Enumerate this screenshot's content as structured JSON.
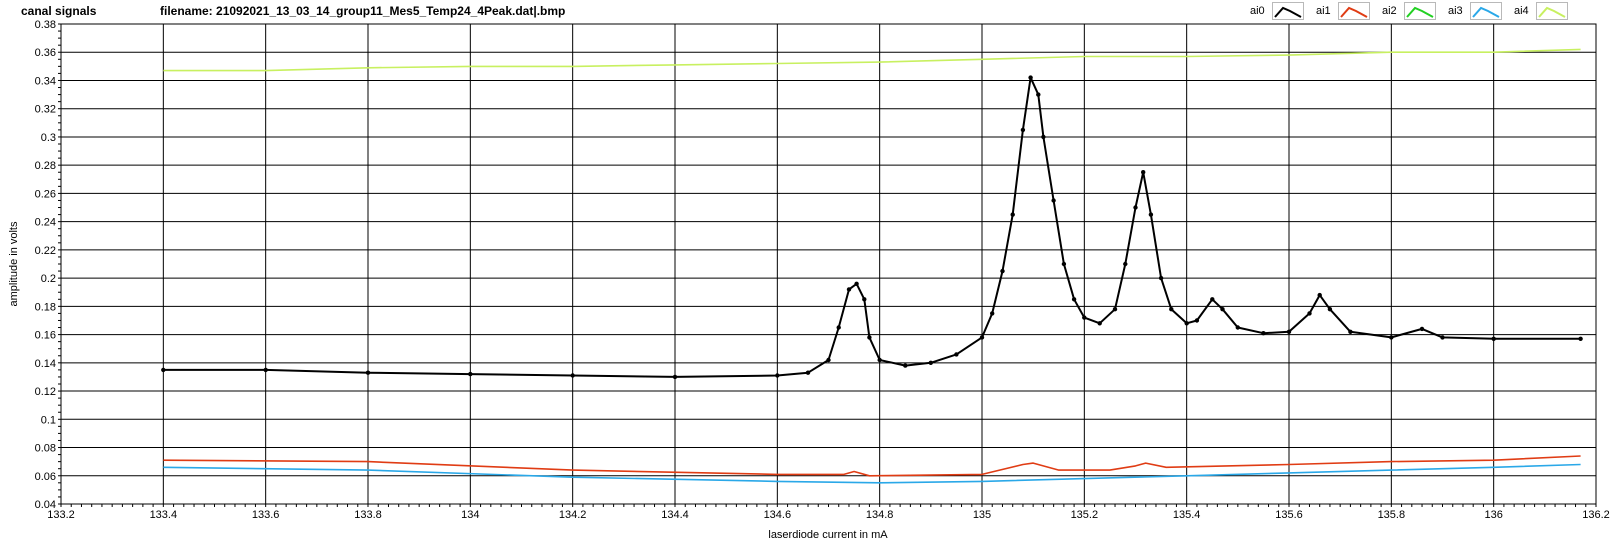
{
  "header": {
    "title": "canal signals",
    "filename": "filename: 21092021_13_03_14_group11_Mes5_Temp24_4Peak.dat|.bmp"
  },
  "legend": [
    {
      "label": "ai0",
      "color": "#000000",
      "icon": "zigzag-swatch"
    },
    {
      "label": "ai1",
      "color": "#e03c14",
      "icon": "zigzag-swatch"
    },
    {
      "label": "ai2",
      "color": "#22d022",
      "icon": "zigzag-swatch"
    },
    {
      "label": "ai3",
      "color": "#2aa8e8",
      "icon": "zigzag-swatch"
    },
    {
      "label": "ai4",
      "color": "#c8f060",
      "icon": "zigzag-swatch"
    }
  ],
  "chart_data": {
    "type": "line",
    "xlabel": "laserdiode current in mA",
    "ylabel": "amplitude in volts",
    "xlim": [
      133.2,
      136.2
    ],
    "ylim": [
      0.04,
      0.38
    ],
    "xticks": [
      "133.2",
      "133.4",
      "133.6",
      "133.8",
      "134",
      "134.2",
      "134.4",
      "134.6",
      "134.8",
      "135",
      "135.2",
      "135.4",
      "135.6",
      "135.8",
      "136",
      "136.2"
    ],
    "yticks": [
      "0.04",
      "0.06",
      "0.08",
      "0.1",
      "0.12",
      "0.14",
      "0.16",
      "0.18",
      "0.2",
      "0.22",
      "0.24",
      "0.26",
      "0.28",
      "0.3",
      "0.32",
      "0.34",
      "0.36",
      "0.38"
    ],
    "grid": true,
    "series": [
      {
        "name": "ai0",
        "color": "#000000",
        "markers": true,
        "points": [
          [
            133.4,
            0.135
          ],
          [
            133.6,
            0.135
          ],
          [
            133.8,
            0.133
          ],
          [
            134.0,
            0.132
          ],
          [
            134.2,
            0.131
          ],
          [
            134.4,
            0.13
          ],
          [
            134.6,
            0.131
          ],
          [
            134.66,
            0.133
          ],
          [
            134.7,
            0.142
          ],
          [
            134.72,
            0.165
          ],
          [
            134.74,
            0.192
          ],
          [
            134.755,
            0.196
          ],
          [
            134.77,
            0.185
          ],
          [
            134.78,
            0.158
          ],
          [
            134.8,
            0.142
          ],
          [
            134.85,
            0.138
          ],
          [
            134.9,
            0.14
          ],
          [
            134.95,
            0.146
          ],
          [
            135.0,
            0.158
          ],
          [
            135.02,
            0.175
          ],
          [
            135.04,
            0.205
          ],
          [
            135.06,
            0.245
          ],
          [
            135.08,
            0.305
          ],
          [
            135.095,
            0.342
          ],
          [
            135.11,
            0.33
          ],
          [
            135.12,
            0.3
          ],
          [
            135.14,
            0.255
          ],
          [
            135.16,
            0.21
          ],
          [
            135.18,
            0.185
          ],
          [
            135.2,
            0.172
          ],
          [
            135.23,
            0.168
          ],
          [
            135.26,
            0.178
          ],
          [
            135.28,
            0.21
          ],
          [
            135.3,
            0.25
          ],
          [
            135.315,
            0.275
          ],
          [
            135.33,
            0.245
          ],
          [
            135.35,
            0.2
          ],
          [
            135.37,
            0.178
          ],
          [
            135.4,
            0.168
          ],
          [
            135.42,
            0.17
          ],
          [
            135.45,
            0.185
          ],
          [
            135.47,
            0.178
          ],
          [
            135.5,
            0.165
          ],
          [
            135.55,
            0.161
          ],
          [
            135.6,
            0.162
          ],
          [
            135.64,
            0.175
          ],
          [
            135.66,
            0.188
          ],
          [
            135.68,
            0.178
          ],
          [
            135.72,
            0.162
          ],
          [
            135.8,
            0.158
          ],
          [
            135.86,
            0.164
          ],
          [
            135.9,
            0.158
          ],
          [
            136.0,
            0.157
          ],
          [
            136.17,
            0.157
          ]
        ]
      },
      {
        "name": "ai1",
        "color": "#e03c14",
        "markers": false,
        "points": [
          [
            133.4,
            0.071
          ],
          [
            133.8,
            0.07
          ],
          [
            134.2,
            0.064
          ],
          [
            134.6,
            0.061
          ],
          [
            134.73,
            0.061
          ],
          [
            134.75,
            0.063
          ],
          [
            134.78,
            0.06
          ],
          [
            135.0,
            0.061
          ],
          [
            135.08,
            0.068
          ],
          [
            135.1,
            0.069
          ],
          [
            135.15,
            0.064
          ],
          [
            135.25,
            0.064
          ],
          [
            135.3,
            0.067
          ],
          [
            135.32,
            0.069
          ],
          [
            135.36,
            0.066
          ],
          [
            135.6,
            0.068
          ],
          [
            135.8,
            0.07
          ],
          [
            136.0,
            0.071
          ],
          [
            136.17,
            0.074
          ]
        ]
      },
      {
        "name": "ai3",
        "color": "#2aa8e8",
        "markers": false,
        "points": [
          [
            133.4,
            0.066
          ],
          [
            133.8,
            0.064
          ],
          [
            134.2,
            0.059
          ],
          [
            134.6,
            0.056
          ],
          [
            134.8,
            0.055
          ],
          [
            135.0,
            0.056
          ],
          [
            135.2,
            0.058
          ],
          [
            135.4,
            0.06
          ],
          [
            135.6,
            0.062
          ],
          [
            135.8,
            0.064
          ],
          [
            136.0,
            0.066
          ],
          [
            136.17,
            0.068
          ]
        ]
      },
      {
        "name": "ai4",
        "color": "#c8f060",
        "markers": false,
        "points": [
          [
            133.4,
            0.347
          ],
          [
            133.6,
            0.347
          ],
          [
            133.8,
            0.349
          ],
          [
            134.0,
            0.35
          ],
          [
            134.2,
            0.35
          ],
          [
            134.4,
            0.351
          ],
          [
            134.6,
            0.352
          ],
          [
            134.8,
            0.353
          ],
          [
            135.0,
            0.355
          ],
          [
            135.2,
            0.357
          ],
          [
            135.4,
            0.357
          ],
          [
            135.6,
            0.358
          ],
          [
            135.8,
            0.36
          ],
          [
            136.0,
            0.36
          ],
          [
            136.17,
            0.362
          ]
        ]
      }
    ]
  }
}
